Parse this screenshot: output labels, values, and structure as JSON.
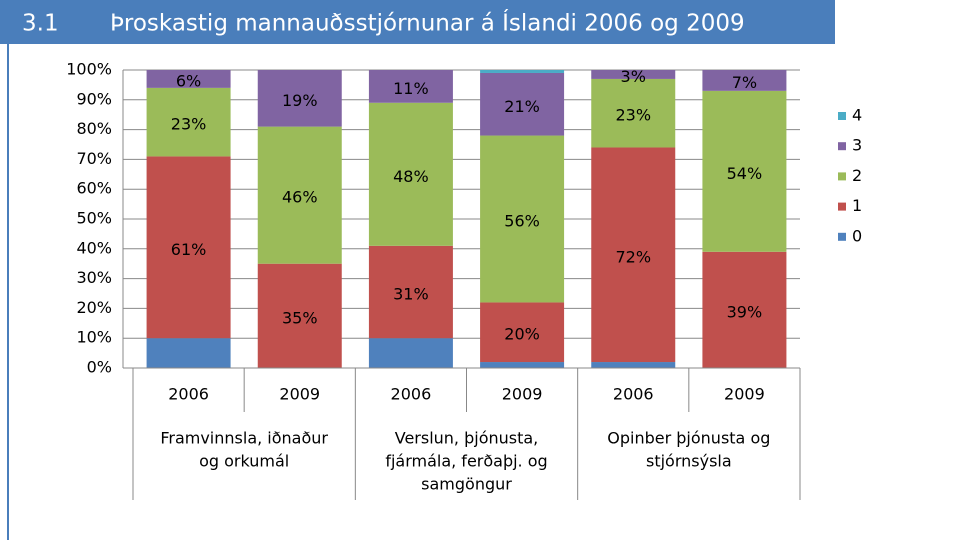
{
  "chart_data": {
    "type": "stacked_bar",
    "number": "3.1",
    "title": "Þroskastig mannauðsstjórnunar á Íslandi 2006 og 2009",
    "categories": [
      "2006",
      "2009",
      "2006",
      "2009",
      "2006",
      "2009"
    ],
    "groups": [
      {
        "lines": [
          "Framvinnsla, iðnaður",
          "og orkumál"
        ],
        "size": 2
      },
      {
        "lines": [
          "Verslun, þjónusta,",
          "fjármála, ferðaþj. og",
          "samgöngur"
        ],
        "size": 2
      },
      {
        "lines": [
          "Opinber þjónusta og",
          "stjórnsýsla"
        ],
        "size": 2
      }
    ],
    "series": [
      {
        "name": "0",
        "color": "#4f81bd",
        "values": [
          10,
          0,
          10,
          2,
          2,
          0
        ],
        "value_labels": [
          null,
          null,
          null,
          null,
          null,
          null
        ]
      },
      {
        "name": "1",
        "color": "#c0504d",
        "values": [
          61,
          35,
          31,
          20,
          72,
          39
        ],
        "value_labels": [
          "61%",
          "35%",
          "31%",
          "20%",
          "72%",
          "39%"
        ]
      },
      {
        "name": "2",
        "color": "#9bbb59",
        "values": [
          23,
          46,
          48,
          56,
          23,
          54
        ],
        "value_labels": [
          "23%",
          "46%",
          "48%",
          "56%",
          "23%",
          "54%"
        ]
      },
      {
        "name": "3",
        "color": "#8064a2",
        "values": [
          6,
          19,
          11,
          21,
          3,
          7
        ],
        "value_labels": [
          "6%",
          "19%",
          "11%",
          "21%",
          "3%",
          "7%"
        ]
      },
      {
        "name": "4",
        "color": "#4bacc6",
        "values": [
          0,
          0,
          0,
          1,
          0,
          0
        ],
        "value_labels": [
          null,
          null,
          null,
          null,
          null,
          null
        ]
      }
    ],
    "ylim": [
      0,
      100
    ],
    "yticks": [
      {
        "value": 0,
        "label": "0%"
      },
      {
        "value": 10,
        "label": "10%"
      },
      {
        "value": 20,
        "label": "20%"
      },
      {
        "value": 30,
        "label": "30%"
      },
      {
        "value": 40,
        "label": "40%"
      },
      {
        "value": 50,
        "label": "50%"
      },
      {
        "value": 60,
        "label": "60%"
      },
      {
        "value": 70,
        "label": "70%"
      },
      {
        "value": 80,
        "label": "80%"
      },
      {
        "value": 90,
        "label": "90%"
      },
      {
        "value": 100,
        "label": "100%"
      }
    ],
    "grid": true,
    "legend": "right"
  }
}
